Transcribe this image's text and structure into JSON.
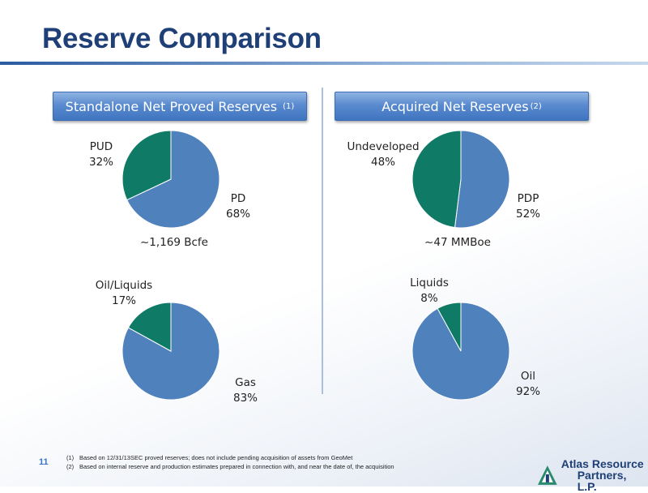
{
  "title": "Reserve Comparison",
  "left": {
    "header": "Standalone Net Proved Reserves",
    "header_sup": "(1)",
    "pie_top": {
      "caption": "~1,169 Bcfe",
      "slices": [
        {
          "name": "PD",
          "pct_label": "68%",
          "value": 68,
          "color": "#4f81bd"
        },
        {
          "name": "PUD",
          "pct_label": "32%",
          "value": 32,
          "color": "#0f7a66"
        }
      ]
    },
    "pie_bottom": {
      "slices": [
        {
          "name": "Gas",
          "pct_label": "83%",
          "value": 83,
          "color": "#4f81bd"
        },
        {
          "name": "Oil/Liquids",
          "pct_label": "17%",
          "value": 17,
          "color": "#0f7a66"
        }
      ]
    }
  },
  "right": {
    "header": "Acquired Net Reserves",
    "header_sup": "(2)",
    "pie_top": {
      "caption": "~47 MMBoe",
      "slices": [
        {
          "name": "PDP",
          "pct_label": "52%",
          "value": 52,
          "color": "#4f81bd"
        },
        {
          "name": "Undeveloped",
          "pct_label": "48%",
          "value": 48,
          "color": "#0f7a66"
        }
      ]
    },
    "pie_bottom": {
      "slices": [
        {
          "name": "Oil",
          "pct_label": "92%",
          "value": 92,
          "color": "#4f81bd"
        },
        {
          "name": "Liquids",
          "pct_label": "8%",
          "value": 8,
          "color": "#0f7a66"
        }
      ]
    }
  },
  "footnotes": [
    {
      "num": "(1)",
      "text": "Based on 12/31/13SEC proved reserves; does not include pending acquisition of assets from GeoMet"
    },
    {
      "num": "(2)",
      "text": "Based on internal reserve and production estimates prepared in connection with, and near the date of, the acquisition"
    }
  ],
  "page_number": "11",
  "logo": {
    "line1": "Atlas Resource",
    "line2": "Partners, L.P.",
    "icon": "atlas-logo-icon"
  }
}
